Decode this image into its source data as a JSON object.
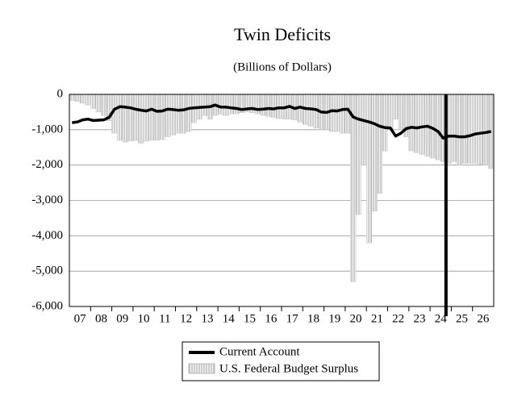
{
  "chart_data": {
    "type": "bar_line",
    "title": "Twin Deficits",
    "subtitle": "(Billions of Dollars)",
    "categories": [
      null,
      "07",
      null,
      null,
      null,
      "08",
      null,
      null,
      null,
      "09",
      null,
      null,
      null,
      "10",
      null,
      null,
      null,
      "11",
      null,
      null,
      null,
      "12",
      null,
      null,
      null,
      "13",
      null,
      null,
      null,
      "14",
      null,
      null,
      null,
      "15",
      null,
      null,
      null,
      "16",
      null,
      null,
      null,
      "17",
      null,
      null,
      null,
      "18",
      null,
      null,
      null,
      "19",
      null,
      null,
      null,
      "20",
      null,
      null,
      null,
      "21",
      null,
      null,
      null,
      "22",
      null,
      null,
      null,
      "23",
      null,
      null,
      null,
      "24",
      null,
      null,
      null,
      "25",
      null,
      null,
      null,
      "26",
      null,
      null
    ],
    "series": [
      {
        "name": "Current Account",
        "kind": "line",
        "color": "#000000",
        "values": [
          -800,
          -780,
          -720,
          -700,
          -740,
          -730,
          -720,
          -650,
          -420,
          -350,
          -360,
          -380,
          -420,
          -450,
          -470,
          -420,
          -480,
          -470,
          -420,
          -430,
          -450,
          -440,
          -400,
          -380,
          -370,
          -360,
          -350,
          -300,
          -360,
          -360,
          -380,
          -400,
          -430,
          -410,
          -400,
          -430,
          -420,
          -400,
          -410,
          -380,
          -380,
          -340,
          -400,
          -360,
          -400,
          -410,
          -430,
          -500,
          -510,
          -460,
          -470,
          -430,
          -420,
          -640,
          -700,
          -740,
          -780,
          -830,
          -900,
          -940,
          -950,
          -1180,
          -1100,
          -970,
          -930,
          -950,
          -920,
          -900,
          -960,
          -1050,
          -1240,
          -1180,
          -1180,
          -1200,
          -1200,
          -1170,
          -1120,
          -1100,
          -1080,
          -1050
        ]
      },
      {
        "name": "U.S. Federal Budget Surplus",
        "kind": "bar",
        "color": "#bbbbbb",
        "values": [
          -170,
          -200,
          -250,
          -300,
          -400,
          -500,
          -600,
          -750,
          -1100,
          -1300,
          -1350,
          -1320,
          -1300,
          -1380,
          -1320,
          -1300,
          -1300,
          -1280,
          -1200,
          -1150,
          -1100,
          -1100,
          -1050,
          -800,
          -700,
          -600,
          -700,
          -600,
          -560,
          -600,
          -550,
          -550,
          -520,
          -500,
          -520,
          -550,
          -600,
          -620,
          -650,
          -680,
          -700,
          -700,
          -720,
          -780,
          -850,
          -900,
          -950,
          -1000,
          -1000,
          -1050,
          -1050,
          -1100,
          -1100,
          -5300,
          -3400,
          -2000,
          -4200,
          -3300,
          -2800,
          -1600,
          -1000,
          -700,
          -1000,
          -1200,
          -1600,
          -1650,
          -1700,
          -1750,
          -1800,
          -1850,
          -1900,
          -1950,
          -1900,
          -2000,
          -1950,
          -1950,
          -1950,
          -1980,
          -2000,
          -2100
        ]
      }
    ],
    "vline_after_index": 70,
    "ylim": [
      -6000,
      0
    ],
    "yticks": [
      {
        "value": -6000,
        "label": "-6,000"
      },
      {
        "value": -5000,
        "label": "-5,000"
      },
      {
        "value": -4000,
        "label": "-4,000"
      },
      {
        "value": -3000,
        "label": "-3,000"
      },
      {
        "value": -2000,
        "label": "-2,000"
      },
      {
        "value": -1000,
        "label": "-1,000"
      },
      0
    ],
    "grid": true
  }
}
